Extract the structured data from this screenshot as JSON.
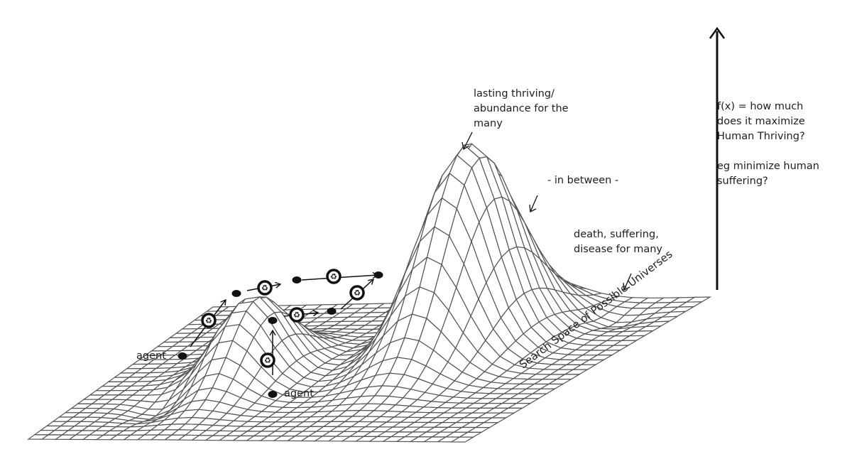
{
  "labels": {
    "peak": "lasting thriving/\nabundance for the\nmany",
    "between": "- in between -",
    "low": "death, suffering,\ndisease for many",
    "objective": "f(x) = how much\ndoes it maximize\nHuman Thriving?",
    "objective_example": "eg minimize human\nsuffering?",
    "x_axis": "Search Space of Possible Universes",
    "agent_1": "agent",
    "agent_2": "agent"
  },
  "icons": {
    "step_marker": "recycle-icon",
    "agent_marker": "dot"
  },
  "colors": {
    "ink": "#111111",
    "mesh": "#555555",
    "background": "#ffffff"
  }
}
